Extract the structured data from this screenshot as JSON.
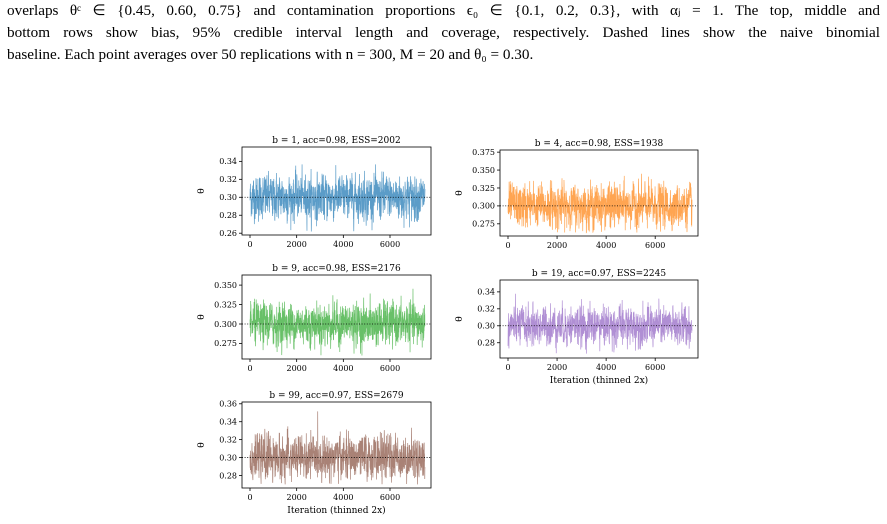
{
  "caption": {
    "lines": [
      "overlaps θᶜ ∈ {0.45, 0.60, 0.75} and contamination proportions ϵ₀ ∈ {0.1, 0.2, 0.3}, with αⱼ = 1.  The top, middle and",
      "bottom rows show bias, 95% credible interval length and coverage, respectively.  Dashed lines show the naive binomial",
      "baseline. Each point averages over 50 replications with n = 300, M = 20 and θ₀ = 0.30."
    ]
  },
  "figure": {
    "colors": {
      "blue": "#1f77b4",
      "orange": "#ff7f0e",
      "green": "#2ca02c",
      "purple": "#9467bd",
      "brown": "#8c564b"
    },
    "panels": [
      {
        "title": "b = 1, acc=0.98, ESS=2002",
        "ylabel": "θ",
        "xlabel": "",
        "color": "#5b9cc8",
        "yticks": [
          "0.34",
          "0.32",
          "0.30",
          "0.28",
          "0.26"
        ],
        "xticks": [
          "0",
          "2000",
          "4000",
          "6000"
        ],
        "y_range": [
          0.258,
          0.356
        ],
        "center": 0.3,
        "ref_line": 0.3,
        "n_iter": 7500
      },
      {
        "title": "b = 4, acc=0.98, ESS=1938",
        "ylabel": "θ",
        "xlabel": "",
        "color": "#ffa552",
        "yticks": [
          "0.375",
          "0.350",
          "0.325",
          "0.300",
          "0.275"
        ],
        "xticks": [
          "0",
          "2000",
          "4000",
          "6000"
        ],
        "y_range": [
          0.258,
          0.378
        ],
        "center": 0.3,
        "ref_line": 0.3,
        "n_iter": 7500
      },
      {
        "title": "b = 9, acc=0.98, ESS=2176",
        "ylabel": "θ",
        "xlabel": "",
        "color": "#68c068",
        "yticks": [
          "0.350",
          "0.325",
          "0.300",
          "0.275"
        ],
        "xticks": [
          "0",
          "2000",
          "4000",
          "6000"
        ],
        "y_range": [
          0.255,
          0.363
        ],
        "center": 0.3,
        "ref_line": 0.3,
        "n_iter": 7500
      },
      {
        "title": "b = 19, acc=0.97, ESS=2245",
        "ylabel": "θ",
        "xlabel": "Iteration (thinned 2x)",
        "color": "#b08fd4",
        "yticks": [
          "0.34",
          "0.32",
          "0.30",
          "0.28"
        ],
        "xticks": [
          "0",
          "2000",
          "4000",
          "6000"
        ],
        "y_range": [
          0.262,
          0.354
        ],
        "center": 0.3,
        "ref_line": 0.3,
        "n_iter": 7500
      },
      {
        "title": "b = 99, acc=0.97, ESS=2679",
        "ylabel": "θ",
        "xlabel": "Iteration (thinned 2x)",
        "color": "#a98276",
        "yticks": [
          "0.36",
          "0.34",
          "0.32",
          "0.30",
          "0.28"
        ],
        "xticks": [
          "0",
          "2000",
          "4000",
          "6000"
        ],
        "y_range": [
          0.266,
          0.362
        ],
        "center": 0.3,
        "ref_line": 0.3,
        "n_iter": 7500
      }
    ]
  }
}
